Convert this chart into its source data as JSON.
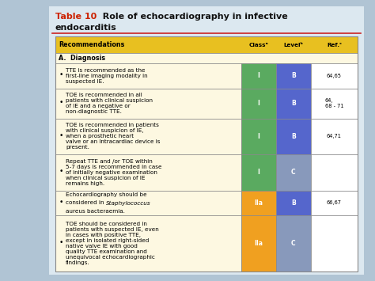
{
  "bg_color": "#b0c4d4",
  "slide_bg": "#dce8f0",
  "table_bg": "#fdf8e1",
  "header_bg": "#e8c020",
  "green_color": "#5aaa60",
  "orange_color": "#f0a020",
  "blue_dark": "#5566cc",
  "blue_light": "#8899bb",
  "title_red": "#cc2200",
  "title_black": "#111111",
  "border_red": "#cc2222",
  "rows": [
    {
      "text": "TTE is recommended as the\nfirst-line imaging modality in\nsuspected IE.",
      "class_val": "I",
      "class_color": "#5aaa60",
      "level_val": "B",
      "level_color": "#5566cc",
      "ref_val": "64,65",
      "italic_word": ""
    },
    {
      "text": "TOE is recommended in all\npatients with clinical suspicion\nof IE and a negative or\nnon-diagnostic TTE.",
      "class_val": "I",
      "class_color": "#5aaa60",
      "level_val": "B",
      "level_color": "#5566cc",
      "ref_val": "64,\n68 - 71",
      "italic_word": ""
    },
    {
      "text": "TOE is recommended in patients\nwith clinical suspicion of IE,\nwhen a prosthetic heart\nvalve or an intracardiac device is\npresent.",
      "class_val": "I",
      "class_color": "#5aaa60",
      "level_val": "B",
      "level_color": "#5566cc",
      "ref_val": "64,71",
      "italic_word": ""
    },
    {
      "text": "Repeat TTE and /or TOE within\n5-7 days is recommended in case\nof initially negative examination\nwhen clinical suspicion of IE\nremains high.",
      "class_val": "I",
      "class_color": "#5aaa60",
      "level_val": "C",
      "level_color": "#8899bb",
      "ref_val": "",
      "italic_word": ""
    },
    {
      "text": "Echocardiography should be\nconsidered in Staphylococcus\naureus bacteraemia.",
      "class_val": "IIa",
      "class_color": "#f0a020",
      "level_val": "B",
      "level_color": "#5566cc",
      "ref_val": "66,67",
      "italic_word": "Staphylococcus"
    },
    {
      "text": "TOE should be considered in\npatients with suspected IE, even\nin cases with positive TTE,\nexcept in isolated right-sided\nnative valve IE with good\nquality TTE examination and\nunequivocal echocardiographic\nfindings.",
      "class_val": "IIa",
      "class_color": "#f0a020",
      "level_val": "C",
      "level_color": "#8899bb",
      "ref_val": "",
      "italic_word": ""
    }
  ],
  "row_heights_rel": [
    0.5,
    0.3,
    0.75,
    0.9,
    1.05,
    1.1,
    0.72,
    1.68
  ]
}
